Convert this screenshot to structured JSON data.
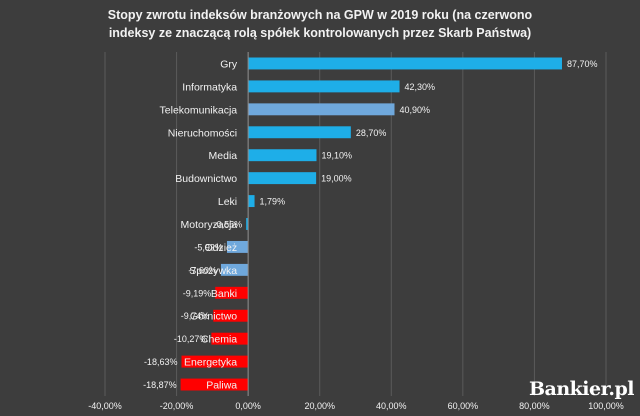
{
  "chart_data": {
    "type": "bar",
    "orientation": "horizontal",
    "title_line1": "Stopy zwrotu indeksów branżowych na GPW w 2019 roku (na czerwono",
    "title_line2": "indeksy ze znaczącą rolą spółek kontrolowanych przez Skarb Państwa)",
    "categories": [
      "Gry",
      "Informatyka",
      "Telekomunikacja",
      "Nieruchomości",
      "Media",
      "Budownictwo",
      "Leki",
      "Motoryzacja",
      "Odzież",
      "Spożywka",
      "Banki",
      "Górnictwo",
      "Chemia",
      "Energetyka",
      "Paliwa"
    ],
    "values": [
      87.7,
      42.3,
      40.9,
      28.7,
      19.1,
      19.0,
      1.79,
      -0.55,
      -5.92,
      -7.6,
      -9.19,
      -9.74,
      -10.27,
      -18.63,
      -18.87
    ],
    "value_labels": [
      "87,70%",
      "42,30%",
      "40,90%",
      "28,70%",
      "19,10%",
      "19,00%",
      "1,79%",
      "-0,55%",
      "-5,92%",
      "-7,60%",
      "-9,19%",
      "-9,74%",
      "-10,27%",
      "-18,63%",
      "-18,87%"
    ],
    "state_controlled": [
      false,
      false,
      true,
      false,
      false,
      false,
      false,
      false,
      true,
      true,
      true,
      true,
      true,
      true,
      true
    ],
    "bar_colors": [
      "#1eaee8",
      "#1eaee8",
      "#6fa8dc",
      "#1eaee8",
      "#1eaee8",
      "#1eaee8",
      "#1eaee8",
      "#1eaee8",
      "#6fa8dc",
      "#6fa8dc",
      "#ff0000",
      "#ff0000",
      "#ff0000",
      "#ff0000",
      "#ff0000"
    ],
    "xlim": [
      -40,
      100
    ],
    "x_ticks": [
      -40,
      -20,
      0,
      20,
      40,
      60,
      80,
      100
    ],
    "x_tick_labels": [
      "-40,00%",
      "-20,00%",
      "0,00%",
      "20,00%",
      "40,00%",
      "60,00%",
      "80,00%",
      "100,00%"
    ],
    "grid": true,
    "colors": {
      "background": "#3d3d3d",
      "text": "#f2f2f2",
      "grid": "#5a5a5a",
      "axis": "#8c8c8c"
    }
  },
  "branding": {
    "logo_text": "Bankier.pl"
  }
}
